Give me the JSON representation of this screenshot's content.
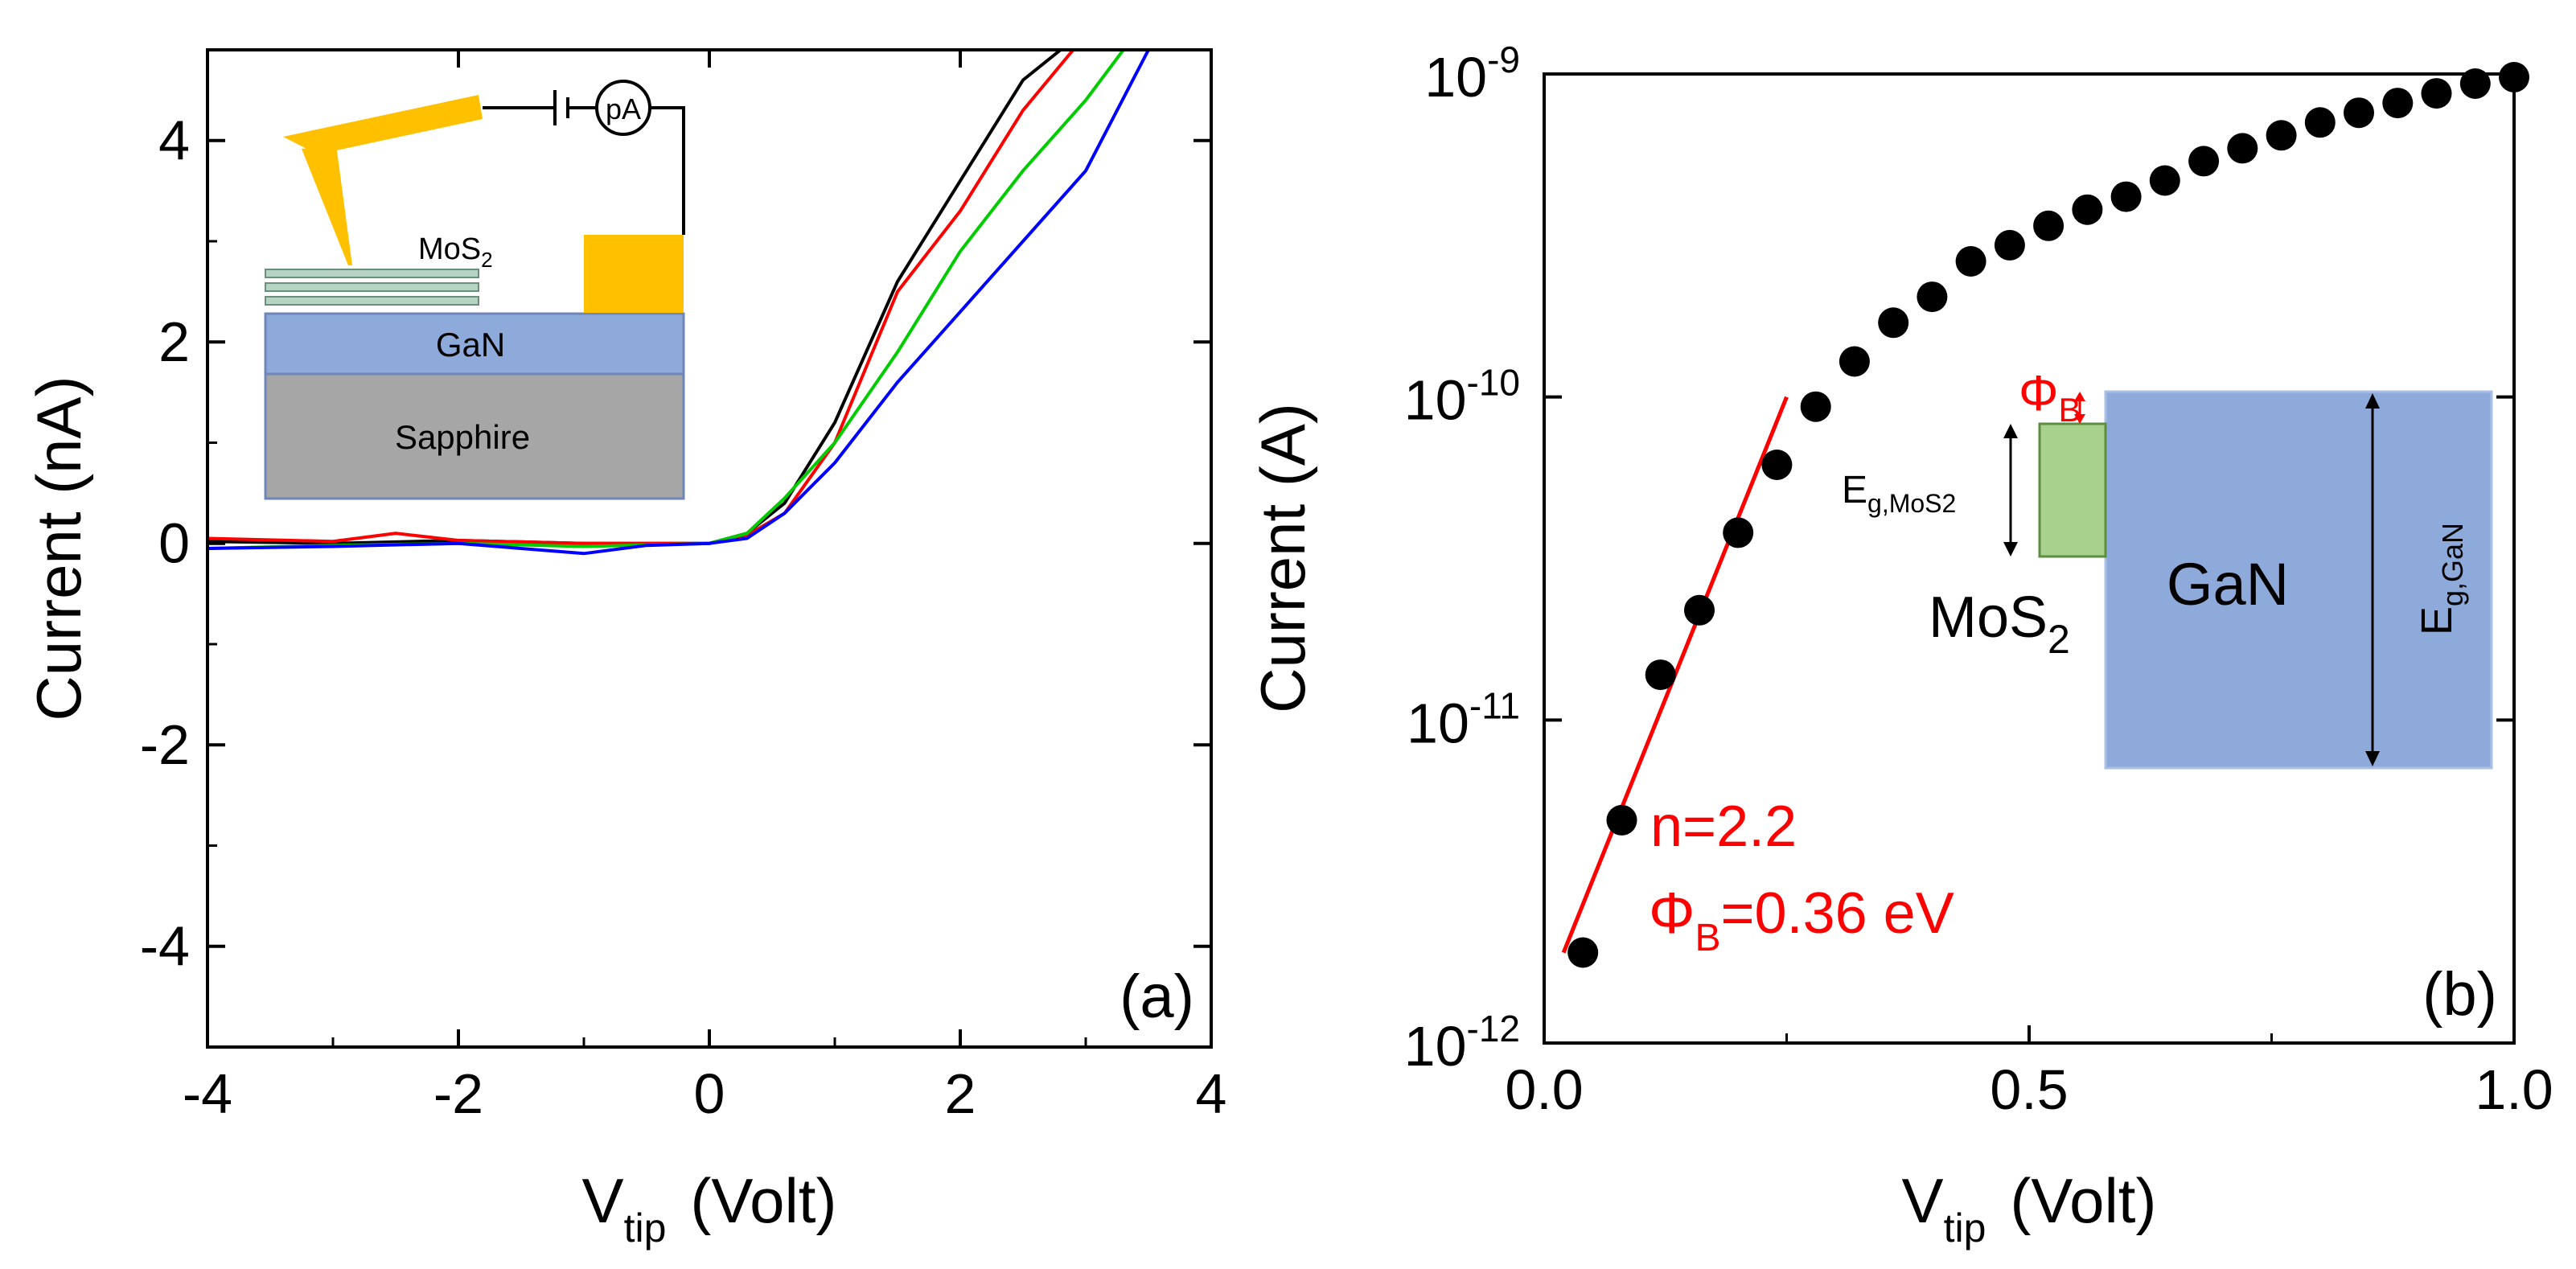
{
  "colors": {
    "axis": "#000000",
    "black_series": "#000000",
    "red_series": "#ff0000",
    "green_series": "#00cc00",
    "blue_series": "#0000ff",
    "tip_gold": "#ffc000",
    "mos2_layer": "#b7d3c3",
    "gan_blue": "#8eaadb",
    "sapphire_gray": "#a6a6a6",
    "mos2_band": "#a9d18e",
    "fit_red": "#ff0000"
  },
  "panel_a": {
    "label": "(a)",
    "inset": {
      "mos2_label": "MoS",
      "mos2_sub": "2",
      "gan_label": "GaN",
      "sapphire_label": "Sapphire",
      "meter_label": "pA"
    }
  },
  "panel_b": {
    "label": "(b)",
    "fit_n": "n=2.2",
    "fit_phi_symbol": "Φ",
    "fit_phi_sub": "B",
    "fit_phi_value": "=0.36 eV",
    "inset": {
      "phi_symbol": "Φ",
      "phi_sub": "B",
      "eg_mos2": "E",
      "eg_mos2_sub": "g,MoS2",
      "mos2_label": "MoS",
      "mos2_sub": "2",
      "gan_label": "GaN",
      "eg_gan": "E",
      "eg_gan_sub": "g,GaN"
    }
  },
  "chart_data": [
    {
      "type": "line",
      "panel": "a",
      "xlabel": "V",
      "xlabel_sub": "tip",
      "xlabel_unit": "(Volt)",
      "ylabel": "Current (nA)",
      "xlim": [
        -4,
        4
      ],
      "ylim": [
        -5,
        4.9
      ],
      "xticks": [
        -4,
        -2,
        0,
        2,
        4
      ],
      "yticks": [
        -4,
        -2,
        0,
        2,
        4
      ],
      "xtick_labels": [
        "-4",
        "-2",
        "0",
        "2",
        "4"
      ],
      "ytick_labels": [
        "-4",
        "-2",
        "0",
        "2",
        "4"
      ],
      "series": [
        {
          "name": "black",
          "color": "#000000",
          "x": [
            -4,
            -3,
            -2,
            -1,
            0,
            0.3,
            0.6,
            1.0,
            1.5,
            2.0,
            2.5,
            2.8,
            4
          ],
          "y": [
            0.02,
            0.0,
            0.03,
            0.0,
            0.0,
            0.1,
            0.4,
            1.2,
            2.6,
            3.6,
            4.6,
            4.9,
            4.9
          ]
        },
        {
          "name": "red",
          "color": "#ff0000",
          "x": [
            -4,
            -3,
            -2.5,
            -2,
            -1,
            0,
            0.3,
            0.6,
            1.0,
            1.5,
            2.0,
            2.5,
            2.9,
            4
          ],
          "y": [
            0.05,
            0.02,
            0.1,
            0.03,
            0.0,
            0.0,
            0.08,
            0.3,
            1.0,
            2.5,
            3.3,
            4.3,
            4.9,
            4.9
          ]
        },
        {
          "name": "green",
          "color": "#00cc00",
          "x": [
            -4,
            -3,
            -2,
            -1,
            0,
            0.3,
            0.6,
            1.0,
            1.5,
            2.0,
            2.5,
            3.0,
            3.3,
            4
          ],
          "y": [
            -0.05,
            -0.02,
            0.0,
            -0.03,
            0.0,
            0.1,
            0.45,
            1.0,
            1.9,
            2.9,
            3.7,
            4.4,
            4.9,
            4.9
          ]
        },
        {
          "name": "blue",
          "color": "#0000ff",
          "x": [
            -4,
            -3,
            -2,
            -1,
            -0.5,
            0,
            0.3,
            0.6,
            1.0,
            1.5,
            2.0,
            2.5,
            3.0,
            3.5,
            4
          ],
          "y": [
            -0.05,
            -0.03,
            0.0,
            -0.1,
            -0.02,
            0.0,
            0.05,
            0.3,
            0.8,
            1.6,
            2.3,
            3.0,
            3.7,
            4.9,
            4.9
          ]
        }
      ]
    },
    {
      "type": "scatter",
      "panel": "b",
      "xlabel": "V",
      "xlabel_sub": "tip",
      "xlabel_unit": "(Volt)",
      "ylabel": "Current (A)",
      "xlim": [
        0,
        1.0
      ],
      "ylim_log10": [
        -12,
        -9
      ],
      "yscale": "log",
      "xticks": [
        0,
        0.5,
        1.0
      ],
      "xtick_labels": [
        "0.0",
        "0.5",
        "1.0"
      ],
      "yticks_log10": [
        -12,
        -11,
        -10,
        -9
      ],
      "ytick_base": "10",
      "ytick_exponents": [
        "-12",
        "-11",
        "-10",
        "-9"
      ],
      "points": {
        "x": [
          0.04,
          0.08,
          0.12,
          0.16,
          0.2,
          0.24,
          0.28,
          0.32,
          0.36,
          0.4,
          0.44,
          0.48,
          0.52,
          0.56,
          0.6,
          0.64,
          0.68,
          0.72,
          0.76,
          0.8,
          0.84,
          0.88,
          0.92,
          0.96,
          1.0
        ],
        "y_log10": [
          -11.72,
          -11.31,
          -10.86,
          -10.66,
          -10.42,
          -10.21,
          -10.03,
          -9.89,
          -9.77,
          -9.69,
          -9.58,
          -9.53,
          -9.47,
          -9.42,
          -9.38,
          -9.33,
          -9.27,
          -9.23,
          -9.19,
          -9.15,
          -9.12,
          -9.09,
          -9.06,
          -9.03,
          -9.01
        ]
      },
      "fit_line": {
        "x": [
          0.02,
          0.25
        ],
        "y_log10": [
          -11.72,
          -10.0
        ]
      },
      "annotations": [
        "n=2.2",
        "ΦB=0.36 eV"
      ]
    }
  ]
}
